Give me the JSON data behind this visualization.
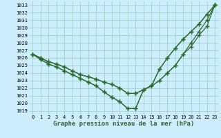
{
  "title": "Graphe pression niveau de la mer (hPa)",
  "background_color": "#cceeff",
  "line_color": "#2d6a2d",
  "grid_color": "#99ccbb",
  "x_values": [
    0,
    1,
    2,
    3,
    4,
    5,
    6,
    7,
    8,
    9,
    10,
    11,
    12,
    13,
    14,
    15,
    16,
    17,
    18,
    19,
    20,
    21,
    22,
    23
  ],
  "series": [
    [
      1026.5,
      1026.0,
      1025.5,
      1025.2,
      1024.8,
      1024.3,
      1023.8,
      1023.5,
      1023.2,
      1022.8,
      1022.5,
      1022.0,
      1021.3,
      1021.3,
      1021.8,
      1022.3,
      1023.0,
      1024.0,
      1025.0,
      1026.5,
      1028.0,
      1029.5,
      1031.0,
      1033.0
    ],
    [
      1026.5,
      1026.0,
      1025.5,
      1025.2,
      1024.8,
      1024.3,
      1023.8,
      1023.5,
      1023.2,
      1022.8,
      1022.5,
      1022.0,
      1021.3,
      1021.3,
      1021.8,
      1022.3,
      1024.5,
      1026.0,
      1027.3,
      1028.5,
      1029.5,
      1030.5,
      1031.8,
      1033.0
    ],
    [
      1026.5,
      1025.8,
      1025.2,
      1024.8,
      1024.3,
      1023.8,
      1023.3,
      1022.8,
      1022.3,
      1021.5,
      1020.8,
      1020.2,
      1019.3,
      1019.3,
      1021.8,
      1022.3,
      1023.0,
      1024.0,
      1025.0,
      1026.5,
      1027.5,
      1029.0,
      1030.2,
      1033.0
    ],
    [
      1026.5,
      1025.8,
      1025.2,
      1024.8,
      1024.3,
      1023.8,
      1023.3,
      1022.8,
      1022.3,
      1021.5,
      1020.8,
      1020.2,
      1019.3,
      1019.3,
      1021.8,
      1022.3,
      1024.5,
      1026.0,
      1027.3,
      1028.5,
      1029.5,
      1030.5,
      1031.8,
      1033.0
    ]
  ],
  "ylim_min": 1018.5,
  "ylim_max": 1033.5,
  "yticks": [
    1019,
    1020,
    1021,
    1022,
    1023,
    1024,
    1025,
    1026,
    1027,
    1028,
    1029,
    1030,
    1031,
    1032,
    1033
  ],
  "xticks": [
    0,
    1,
    2,
    3,
    4,
    5,
    6,
    7,
    8,
    9,
    10,
    11,
    12,
    13,
    14,
    15,
    16,
    17,
    18,
    19,
    20,
    21,
    22,
    23
  ],
  "marker": "+",
  "marker_size": 4,
  "line_width": 0.9,
  "title_fontsize": 6.5,
  "tick_fontsize": 5,
  "figsize": [
    3.2,
    2.0
  ],
  "dpi": 100
}
